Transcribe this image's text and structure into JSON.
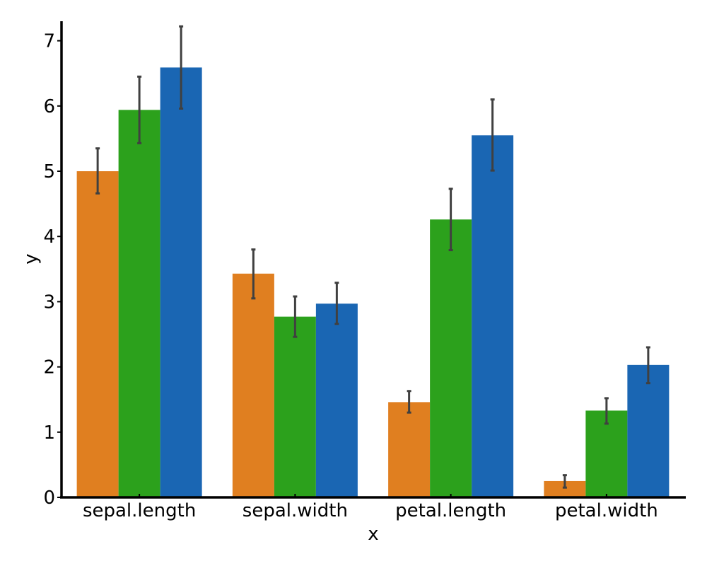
{
  "chart_data": {
    "type": "bar",
    "categories": [
      "sepal.length",
      "sepal.width",
      "petal.length",
      "petal.width"
    ],
    "xlabel": "x",
    "ylabel": "y",
    "ylim": [
      0,
      7.3
    ],
    "yticks": [
      0,
      1,
      2,
      3,
      4,
      5,
      6,
      7
    ],
    "grid": false,
    "legend": "none",
    "series": [
      {
        "color": "#e07f20",
        "values": [
          5.0,
          3.43,
          1.46,
          0.25
        ],
        "error_low": [
          4.66,
          3.05,
          1.3,
          0.15
        ],
        "error_high": [
          5.35,
          3.8,
          1.63,
          0.34
        ]
      },
      {
        "color": "#2ca11c",
        "values": [
          5.94,
          2.77,
          4.26,
          1.33
        ],
        "error_low": [
          5.43,
          2.46,
          3.79,
          1.13
        ],
        "error_high": [
          6.45,
          3.08,
          4.73,
          1.52
        ]
      },
      {
        "color": "#1a66b3",
        "values": [
          6.59,
          2.97,
          5.55,
          2.03
        ],
        "error_low": [
          5.96,
          2.66,
          5.01,
          1.75
        ],
        "error_high": [
          7.22,
          3.29,
          6.1,
          2.3
        ]
      }
    ],
    "error_bar_color": "#404040"
  }
}
